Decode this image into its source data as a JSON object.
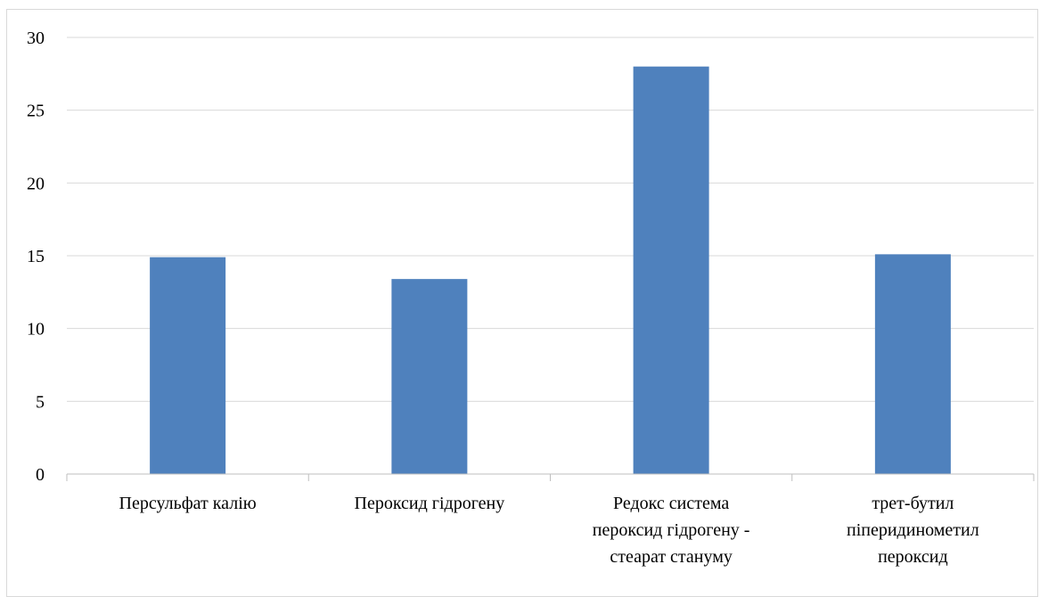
{
  "chart_data": {
    "type": "bar",
    "categories": [
      [
        "Персульфат калію"
      ],
      [
        "Пероксид гідрогену"
      ],
      [
        "Редокс система",
        "пероксид гідрогену -",
        "стеарат стануму"
      ],
      [
        "трет-бутил",
        "піперидинометил",
        "пероксид"
      ]
    ],
    "values": [
      14.9,
      13.4,
      28.0,
      15.1
    ],
    "ylim": [
      0,
      30
    ],
    "yticks": [
      0,
      5,
      10,
      15,
      20,
      25,
      30
    ],
    "grid": true,
    "bar_color": "#4f81bd",
    "grid_color": "#d9d9d9",
    "axis_color": "#bfbfbf"
  }
}
